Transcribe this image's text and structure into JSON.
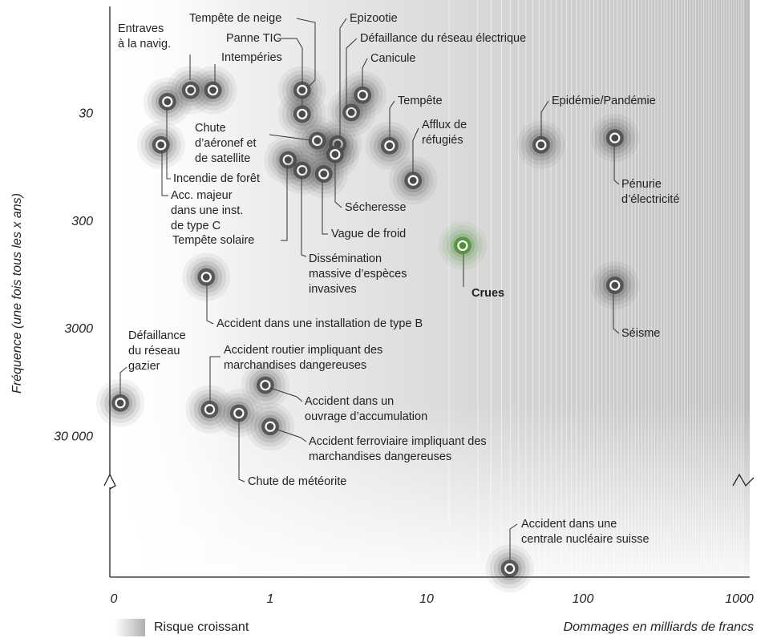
{
  "chart_data": {
    "type": "scatter",
    "xlabel": "Dommages en milliards de francs",
    "ylabel": "Fréquence (une fois tous les x ans)",
    "gradient_legend": "Risque croissant",
    "log_x": true,
    "log_y": true,
    "y_inverted": true,
    "xlim": [
      0.1,
      1000
    ],
    "ylim": [
      3,
      600000
    ],
    "xticks": [
      {
        "value": 0.1,
        "label": "0"
      },
      1,
      10,
      100,
      1000
    ],
    "yticks": [
      30,
      300,
      3000,
      {
        "value": 30000,
        "label": "30 000"
      }
    ],
    "points": [
      {
        "label": [
          "Entraves",
          "à la navig."
        ],
        "x": 0.31,
        "y": 18,
        "color": "#4a4a4a"
      },
      {
        "label": [
          "Intempéries"
        ],
        "x": 0.43,
        "y": 18,
        "color": "#4a4a4a"
      },
      {
        "label": [
          "Incendie de forêt"
        ],
        "x": 0.22,
        "y": 23,
        "color": "#4a4a4a"
      },
      {
        "label": [
          "Acc. majeur",
          "dans une inst.",
          "de type C"
        ],
        "x": 0.2,
        "y": 58,
        "color": "#4a4a4a"
      },
      {
        "label": [
          "Tempête de neige"
        ],
        "x": 1.6,
        "y": 18,
        "color": "#4a4a4a"
      },
      {
        "label": [
          "Panne TIC"
        ],
        "x": 1.6,
        "y": 30,
        "color": "#4a4a4a"
      },
      {
        "label": [
          "Epizootie"
        ],
        "x": 2.7,
        "y": 57,
        "color": "#4a4a4a"
      },
      {
        "label": [
          "Défaillance du réseau électrique"
        ],
        "x": 3.3,
        "y": 29,
        "color": "#4a4a4a"
      },
      {
        "label": [
          "Canicule"
        ],
        "x": 3.9,
        "y": 20,
        "color": "#4a4a4a"
      },
      {
        "label": [
          "Chute",
          "d’aéronef et",
          "de satellite"
        ],
        "x": 2.0,
        "y": 53,
        "color": "#4a4a4a"
      },
      {
        "label": [
          "Tempête solaire"
        ],
        "x": 1.3,
        "y": 80,
        "color": "#4a4a4a"
      },
      {
        "label": [
          "Dissémination",
          "massive d’espèces",
          "invasives"
        ],
        "x": 1.6,
        "y": 100,
        "color": "#4a4a4a"
      },
      {
        "label": [
          "Vague de froid"
        ],
        "x": 2.2,
        "y": 108,
        "color": "#4a4a4a"
      },
      {
        "label": [
          "Sécheresse"
        ],
        "x": 2.6,
        "y": 71,
        "color": "#4a4a4a"
      },
      {
        "label": [
          "Tempête"
        ],
        "x": 5.8,
        "y": 59,
        "color": "#4a4a4a"
      },
      {
        "label": [
          "Afflux de",
          "réfugiés"
        ],
        "x": 8.2,
        "y": 124,
        "color": "#4a4a4a"
      },
      {
        "label": [
          "Epidémie/Pandémie"
        ],
        "x": 54,
        "y": 58,
        "color": "#4a4a4a"
      },
      {
        "label": [
          "Pénurie",
          "d’électricité"
        ],
        "x": 160,
        "y": 50,
        "color": "#4a4a4a"
      },
      {
        "label": [
          "Crues"
        ],
        "x": 17,
        "y": 500,
        "color": "#4f9136",
        "highlight": true
      },
      {
        "label": [
          "Séisme"
        ],
        "x": 160,
        "y": 1170,
        "color": "#4a4a4a"
      },
      {
        "label": [
          "Accident dans une installation de type B"
        ],
        "x": 0.39,
        "y": 980,
        "color": "#4a4a4a"
      },
      {
        "label": [
          "Défaillance",
          "du réseau",
          "gazier"
        ],
        "x": 0.11,
        "y": 14500,
        "color": "#4a4a4a"
      },
      {
        "label": [
          "Accident routier impliquant des",
          "marchandises dangereuses"
        ],
        "x": 0.41,
        "y": 16600,
        "color": "#4a4a4a"
      },
      {
        "label": [
          "Chute de météorite"
        ],
        "x": 0.63,
        "y": 18000,
        "color": "#4a4a4a"
      },
      {
        "label": [
          "Accident dans un",
          "ouvrage d’accumulation"
        ],
        "x": 0.93,
        "y": 9900,
        "color": "#4a4a4a"
      },
      {
        "label": [
          "Accident ferroviaire impliquant des",
          "marchandises dangereuses"
        ],
        "x": 1.0,
        "y": 24000,
        "color": "#4a4a4a"
      },
      {
        "label": [
          "Accident dans une",
          "centrale nucléaire suisse"
        ],
        "x": 34,
        "y": 500000,
        "color": "#4a4a4a"
      }
    ]
  }
}
